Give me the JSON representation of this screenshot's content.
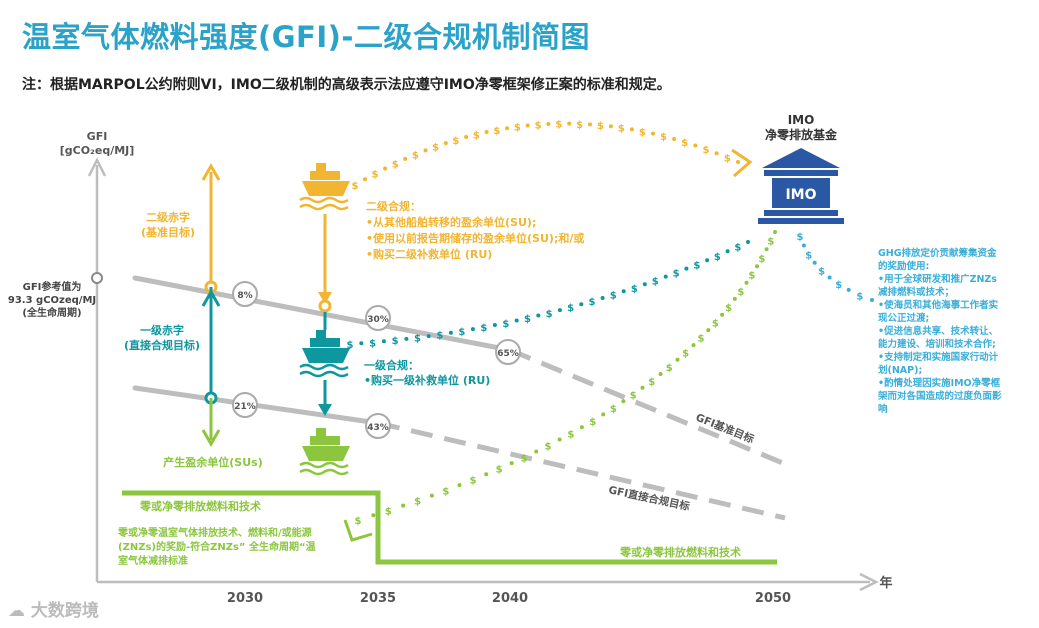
{
  "title": "温室气体燃料强度(GFI)-二级合规机制简图",
  "note": "注：根据MARPOL公约附则VI，IMO二级机制的高级表示法应遵守IMO净零框架修正案的标准和规定。",
  "axis": {
    "y_label_line1": "GFI",
    "y_label_line2": "[gCO₂eq/MJ]",
    "x_unit": "年",
    "x_ticks": [
      "2030",
      "2035",
      "2040",
      "2050"
    ]
  },
  "reference": {
    "line1": "GFI参考值为",
    "line2": "93.3 gCOzeq/MJ",
    "line3": "(全生命周期)"
  },
  "targets": {
    "base": "GFI基准目标",
    "direct": "GFI直接合规目标"
  },
  "badges": {
    "base_2030": "8%",
    "base_2035": "30%",
    "base_2040": "65%",
    "direct_2030": "21%",
    "direct_2035": "43%"
  },
  "tier2_deficit": {
    "line1": "二级赤字",
    "line2": "(基准目标)"
  },
  "tier1_deficit": {
    "line1": "一级赤字",
    "line2": "(直接合规目标)"
  },
  "surplus_label": "产生盈余单位(SUs)",
  "tier2_compliance": {
    "title": "二级合规：",
    "items": [
      "•从其他船舶转移的盈余单位(SU);",
      "•使用以前报告期储存的盈余单位(SU);和/或",
      "•购买二级补救单位 (RU)"
    ]
  },
  "tier1_compliance": {
    "title": "一级合规：",
    "items": [
      "•购买一级补救单位 (RU)"
    ]
  },
  "zne_label_left": "零或净零排放燃料和技术",
  "zne_label_right": "零或净零排放燃料和技术",
  "reward_text": [
    "零或净零温室气体排放技术、燃料和/或能源",
    "(ZNZs)的奖励-符合ZNZs” 全生命周期“温",
    "室气体减排标准"
  ],
  "fund": {
    "line1": "IMO",
    "line2": "净零排放基金",
    "logo_text": "IMO"
  },
  "fund_usage": {
    "lines": [
      "GHG排放定价贡献筹集资金",
      "的奖励使用:",
      "•用于全球研发和推广ZNZs",
      "减排燃料或技术；",
      "•使海员和其他海事工作者实",
      "现公正过渡;",
      "•促进信息共享、技术转让、",
      "能力建设、培训和技术合作;",
      "•支持制定和实施国家行动计",
      "划(NAP);",
      "•酌情处理因实施IMO净零框",
      "架而对各国造成的过度负面影",
      "响"
    ]
  },
  "watermark": "大数跨境",
  "colors": {
    "title": "#2ba3c9",
    "orange": "#f2b531",
    "teal": "#0f97a0",
    "green": "#8cc63f",
    "gray": "#bdbdbd",
    "dark_gray": "#555555",
    "usage_blue": "#3aaed8"
  }
}
